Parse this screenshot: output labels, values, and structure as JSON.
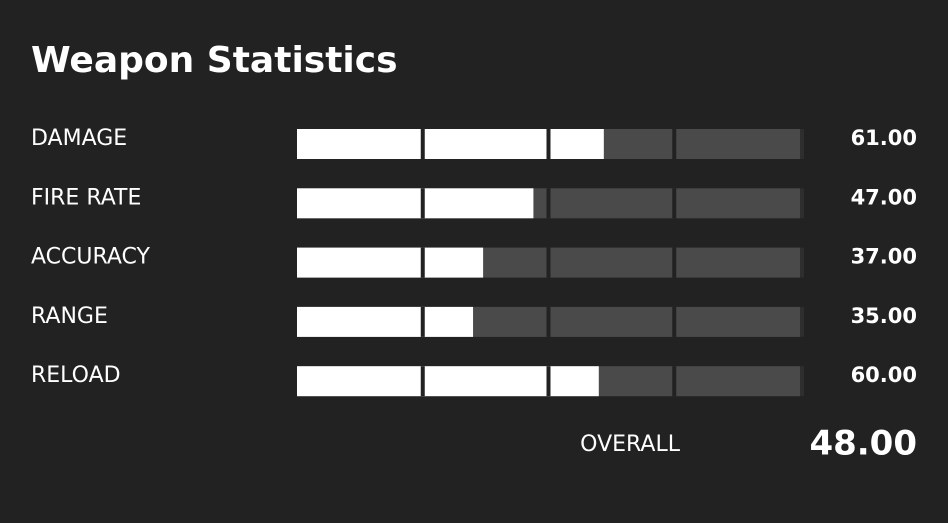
{
  "title": "Weapon Statistics",
  "scale": {
    "xlim": [
      0,
      100
    ],
    "xticks": [
      0,
      25,
      50,
      75,
      100
    ]
  },
  "stats": [
    {
      "label": "DAMAGE",
      "value": 61,
      "value_label": "61.00"
    },
    {
      "label": "FIRE RATE",
      "value": 47,
      "value_label": "47.00"
    },
    {
      "label": "ACCURACY",
      "value": 37,
      "value_label": "37.00"
    },
    {
      "label": "RANGE",
      "value": 35,
      "value_label": "35.00"
    },
    {
      "label": "RELOAD",
      "value": 60,
      "value_label": "60.00"
    }
  ],
  "overall": {
    "label": "OVERALL",
    "value": 48,
    "value_label": "48.00"
  }
}
